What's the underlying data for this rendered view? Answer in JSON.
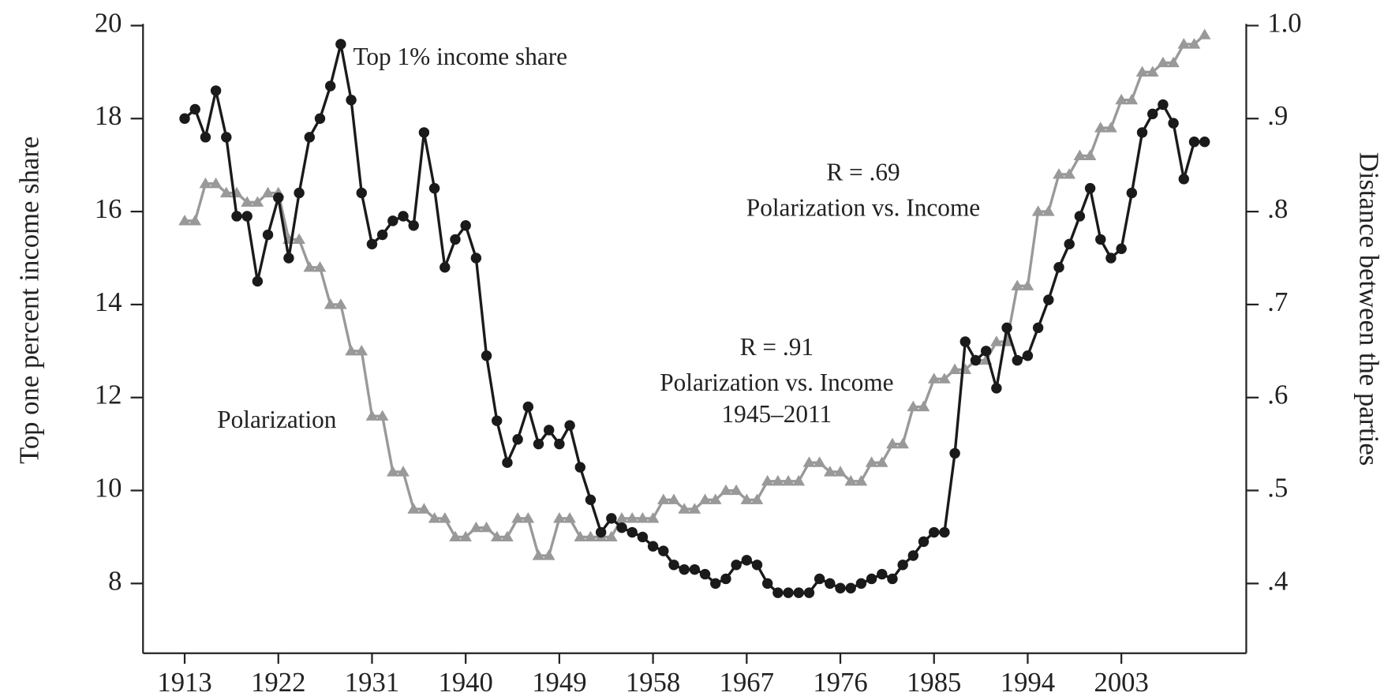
{
  "chart_data": {
    "type": "line",
    "ylabel": "Top one percent income share",
    "y2label": "Distance between the parties",
    "annotations": [
      "Top 1% income share",
      "Polarization",
      "R = .69",
      "Polarization vs. Income",
      "R = .91",
      "Polarization vs. Income",
      "1945–2011"
    ],
    "xlim": [
      1909,
      2015
    ],
    "xticks": [
      1913,
      1922,
      1931,
      1940,
      1949,
      1958,
      1967,
      1976,
      1985,
      1994,
      2003
    ],
    "ylim": [
      6.5,
      20
    ],
    "yticks": [
      8,
      10,
      12,
      14,
      16,
      18,
      20
    ],
    "y2lim": [
      0.325,
      1.0
    ],
    "y2ticks": [
      {
        "value": 0.4,
        "label": ".4"
      },
      {
        "value": 0.5,
        "label": ".5"
      },
      {
        "value": 0.6,
        "label": ".6"
      },
      {
        "value": 0.7,
        "label": ".7"
      },
      {
        "value": 0.8,
        "label": ".8"
      },
      {
        "value": 0.9,
        "label": ".9"
      },
      {
        "value": 1.0,
        "label": "1.0"
      }
    ],
    "x": [
      1913,
      1914,
      1915,
      1916,
      1917,
      1918,
      1919,
      1920,
      1921,
      1922,
      1923,
      1924,
      1925,
      1926,
      1927,
      1928,
      1929,
      1930,
      1931,
      1932,
      1933,
      1934,
      1935,
      1936,
      1937,
      1938,
      1939,
      1940,
      1941,
      1942,
      1943,
      1944,
      1945,
      1946,
      1947,
      1948,
      1949,
      1950,
      1951,
      1952,
      1953,
      1954,
      1955,
      1956,
      1957,
      1958,
      1959,
      1960,
      1961,
      1962,
      1963,
      1964,
      1965,
      1966,
      1967,
      1968,
      1969,
      1970,
      1971,
      1972,
      1973,
      1974,
      1975,
      1976,
      1977,
      1978,
      1979,
      1980,
      1981,
      1982,
      1983,
      1984,
      1985,
      1986,
      1987,
      1988,
      1989,
      1990,
      1991,
      1992,
      1993,
      1994,
      1995,
      1996,
      1997,
      1998,
      1999,
      2000,
      2001,
      2002,
      2003,
      2004,
      2005,
      2006,
      2007,
      2008,
      2009,
      2010,
      2011
    ],
    "series": [
      {
        "color": "#1a1a1a",
        "marker": "circle",
        "values": [
          18.0,
          18.2,
          17.6,
          18.6,
          17.6,
          15.9,
          15.9,
          14.5,
          15.5,
          16.3,
          15.0,
          16.4,
          17.6,
          18.0,
          18.7,
          19.6,
          18.4,
          16.4,
          15.3,
          15.5,
          15.8,
          15.9,
          15.7,
          17.7,
          16.5,
          14.8,
          15.4,
          15.7,
          15.0,
          12.9,
          11.5,
          10.6,
          11.1,
          11.8,
          11.0,
          11.3,
          11.0,
          11.4,
          10.5,
          9.8,
          9.1,
          9.4,
          9.2,
          9.1,
          9.0,
          8.8,
          8.7,
          8.4,
          8.3,
          8.3,
          8.2,
          8.0,
          8.1,
          8.4,
          8.5,
          8.4,
          8.0,
          7.8,
          7.8,
          7.8,
          7.8,
          8.1,
          8.0,
          7.9,
          7.9,
          8.0,
          8.1,
          8.2,
          8.1,
          8.4,
          8.6,
          8.9,
          9.1,
          9.1,
          10.8,
          13.2,
          12.8,
          13.0,
          12.2,
          13.5,
          12.8,
          12.9,
          13.5,
          14.1,
          14.8,
          15.3,
          15.9,
          16.5,
          15.4,
          15.0,
          15.2,
          16.4,
          17.7,
          18.1,
          18.3,
          17.9,
          16.7,
          17.5,
          17.5
        ]
      },
      {
        "color": "#999999",
        "marker": "triangle",
        "axis": "y2",
        "values": [
          0.79,
          0.79,
          0.83,
          0.83,
          0.82,
          0.82,
          0.81,
          0.81,
          0.82,
          0.82,
          0.77,
          0.77,
          0.74,
          0.74,
          0.7,
          0.7,
          0.65,
          0.65,
          0.58,
          0.58,
          0.52,
          0.52,
          0.48,
          0.48,
          0.47,
          0.47,
          0.45,
          0.45,
          0.46,
          0.46,
          0.45,
          0.45,
          0.47,
          0.47,
          0.43,
          0.43,
          0.47,
          0.47,
          0.45,
          0.45,
          0.45,
          0.45,
          0.47,
          0.47,
          0.47,
          0.47,
          0.49,
          0.49,
          0.48,
          0.48,
          0.49,
          0.49,
          0.5,
          0.5,
          0.49,
          0.49,
          0.51,
          0.51,
          0.51,
          0.51,
          0.53,
          0.53,
          0.52,
          0.52,
          0.51,
          0.51,
          0.53,
          0.53,
          0.55,
          0.55,
          0.59,
          0.59,
          0.62,
          0.62,
          0.63,
          0.63,
          0.64,
          0.64,
          0.66,
          0.66,
          0.72,
          0.72,
          0.8,
          0.8,
          0.84,
          0.84,
          0.86,
          0.86,
          0.89,
          0.89,
          0.92,
          0.92,
          0.95,
          0.95,
          0.96,
          0.96,
          0.98,
          0.98,
          0.99
        ]
      }
    ]
  }
}
